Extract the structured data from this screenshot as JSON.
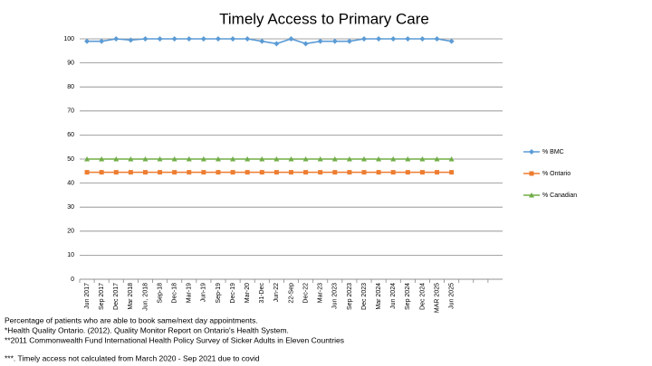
{
  "chart_data": {
    "type": "line",
    "title": "Timely Access to Primary Care",
    "categories": [
      "Jun 2017",
      "Sep 2017",
      "Dec 2017",
      "Mar 2018",
      "Jun, 2018",
      "Sep-18",
      "Dec-18",
      "Mar-19",
      "Jun-19",
      "Sep-19",
      "Dec-19",
      "Mar-20",
      "31-Dec",
      "Jun-22",
      "22-Sep",
      "Dec-22",
      "Mar-23",
      "Jun 2023",
      "Sep 2023",
      "Dec 2023",
      "Mar 2024",
      "Jun 2024",
      "Sep 2024",
      "Dec 2024",
      "MAR 2025",
      "Jun 2025",
      null,
      null,
      null
    ],
    "series": [
      {
        "name": "% BMC",
        "color": "#5b9bd5",
        "marker": "diamond",
        "values": [
          99,
          99,
          100,
          99.5,
          100,
          100,
          100,
          100,
          100,
          100,
          100,
          100,
          99,
          98,
          100,
          98,
          99,
          99,
          99,
          100,
          100,
          100,
          100,
          100,
          100,
          99,
          null,
          null,
          null
        ]
      },
      {
        "name": "% Ontario",
        "color": "#ed7d31",
        "marker": "square",
        "values": [
          44.5,
          44.5,
          44.5,
          44.5,
          44.5,
          44.5,
          44.5,
          44.5,
          44.5,
          44.5,
          44.5,
          44.5,
          44.5,
          44.5,
          44.5,
          44.5,
          44.5,
          44.5,
          44.5,
          44.5,
          44.5,
          44.5,
          44.5,
          44.5,
          44.5,
          44.5,
          null,
          null,
          null
        ]
      },
      {
        "name": "% Canadian",
        "color": "#70ad47",
        "marker": "triangle",
        "values": [
          50,
          50,
          50,
          50,
          50,
          50,
          50,
          50,
          50,
          50,
          50,
          50,
          50,
          50,
          50,
          50,
          50,
          50,
          50,
          50,
          50,
          50,
          50,
          50,
          50,
          50,
          null,
          null,
          null
        ]
      }
    ],
    "ylim": [
      0,
      100
    ],
    "yticks": [
      0,
      10,
      20,
      30,
      40,
      50,
      60,
      70,
      80,
      90,
      100
    ],
    "grid": true,
    "legend": "right",
    "notes": [
      "Percentage of patients who are able to book same/next day appointments.",
      "*Health Quality Ontario. (2012). Quality Monitor Report on Ontario's Health System.",
      "**2011 Commonwealth Fund International Health Policy Survey of Sicker Adults in Eleven Countries",
      "***. Timely access not calculated from March 2020 - Sep 2021 due to covid"
    ]
  }
}
